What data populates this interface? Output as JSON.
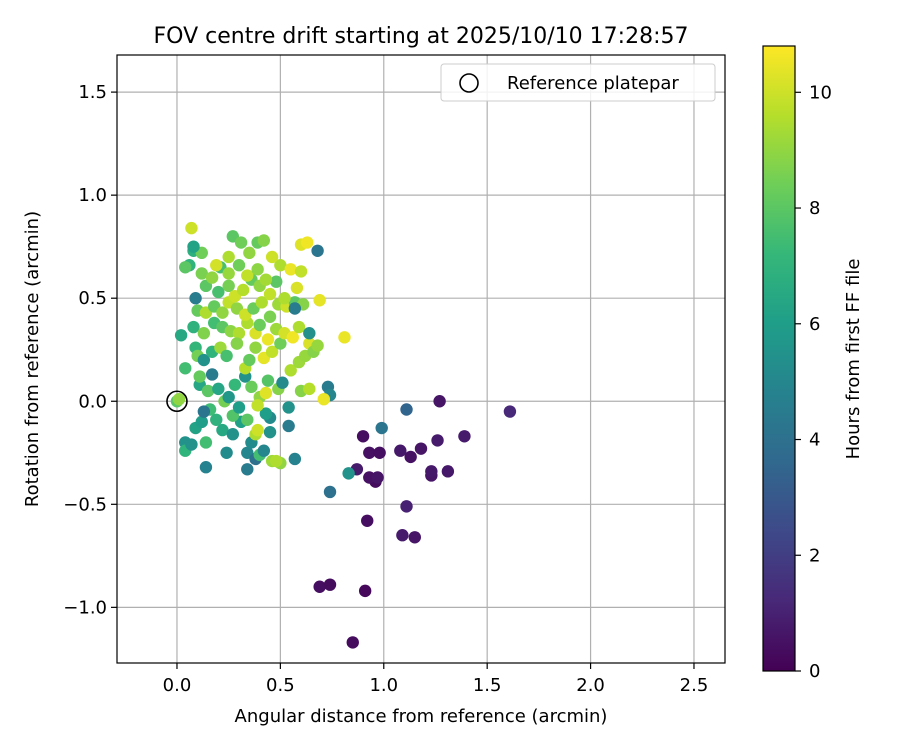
{
  "chart_data": {
    "type": "scatter",
    "title": "FOV centre drift starting at 2025/10/10 17:28:57",
    "xlabel": "Angular distance from reference (arcmin)",
    "ylabel": "Rotation from reference (arcmin)",
    "xlim": [
      -0.29,
      2.65
    ],
    "ylim": [
      -1.27,
      1.68
    ],
    "xticks": [
      0.0,
      0.5,
      1.0,
      1.5,
      2.0,
      2.5
    ],
    "xtick_labels": [
      "0.0",
      "0.5",
      "1.0",
      "1.5",
      "2.0",
      "2.5"
    ],
    "yticks": [
      -1.0,
      -0.5,
      0.0,
      0.5,
      1.0,
      1.5
    ],
    "ytick_labels": [
      "−1.0",
      "−0.5",
      "0.0",
      "0.5",
      "1.0",
      "1.5"
    ],
    "grid": true,
    "legend": {
      "position": "top-right",
      "entries": [
        "Reference platepar"
      ]
    },
    "reference_point": {
      "x": 0.0,
      "y": 0.0
    },
    "colorbar": {
      "label": "Hours from first FF file",
      "min": 0,
      "max": 10.8,
      "ticks": [
        0,
        2,
        4,
        6,
        8,
        10
      ],
      "tick_labels": [
        "0",
        "2",
        "4",
        "6",
        "8",
        "10"
      ],
      "colormap": [
        "#440154",
        "#482878",
        "#3e4989",
        "#31688e",
        "#26828e",
        "#1f9e89",
        "#35b779",
        "#6ece58",
        "#b5de2b",
        "#fde725"
      ]
    },
    "points": [
      [
        0.85,
        -1.17,
        0.3
      ],
      [
        0.91,
        -0.92,
        0.2
      ],
      [
        0.69,
        -0.9,
        0.4
      ],
      [
        0.74,
        -0.89,
        0.3
      ],
      [
        1.15,
        -0.66,
        0.6
      ],
      [
        1.09,
        -0.65,
        0.8
      ],
      [
        0.92,
        -0.58,
        0.4
      ],
      [
        1.11,
        -0.51,
        1.0
      ],
      [
        0.74,
        -0.44,
        4.0
      ],
      [
        0.96,
        -0.39,
        0.3
      ],
      [
        0.93,
        -0.37,
        0.5
      ],
      [
        0.97,
        -0.37,
        0.6
      ],
      [
        0.87,
        -0.33,
        0.8
      ],
      [
        1.23,
        -0.36,
        0.6
      ],
      [
        1.23,
        -0.34,
        0.7
      ],
      [
        1.31,
        -0.34,
        0.7
      ],
      [
        0.93,
        -0.25,
        0.5
      ],
      [
        0.98,
        -0.25,
        0.4
      ],
      [
        1.08,
        -0.24,
        0.7
      ],
      [
        1.13,
        -0.27,
        0.5
      ],
      [
        1.18,
        -0.23,
        0.6
      ],
      [
        1.26,
        -0.19,
        0.8
      ],
      [
        1.39,
        -0.17,
        0.8
      ],
      [
        0.9,
        -0.17,
        0.4
      ],
      [
        0.99,
        -0.13,
        4.2
      ],
      [
        1.11,
        -0.04,
        3.5
      ],
      [
        1.61,
        -0.05,
        1.2
      ],
      [
        1.27,
        0.0,
        0.6
      ],
      [
        0.83,
        -0.35,
        5.5
      ],
      [
        0.57,
        -0.28,
        4.8
      ],
      [
        0.5,
        -0.3,
        9.0
      ],
      [
        0.68,
        0.73,
        4.2
      ],
      [
        0.73,
        0.07,
        4.5
      ],
      [
        0.74,
        0.03,
        5.0
      ],
      [
        0.54,
        -0.03,
        5.5
      ],
      [
        0.54,
        -0.12,
        4.5
      ],
      [
        0.0,
        0.0,
        8.0
      ],
      [
        0.01,
        0.01,
        9.0
      ],
      [
        0.04,
        0.16,
        7.5
      ],
      [
        0.02,
        0.32,
        6.5
      ],
      [
        0.04,
        -0.2,
        5.5
      ],
      [
        0.04,
        -0.24,
        7.0
      ],
      [
        0.07,
        -0.21,
        5.5
      ],
      [
        0.14,
        -0.32,
        4.8
      ],
      [
        0.14,
        -0.2,
        7.5
      ],
      [
        0.24,
        -0.25,
        5.2
      ],
      [
        0.34,
        -0.33,
        4.5
      ],
      [
        0.34,
        -0.25,
        5.0
      ],
      [
        0.38,
        -0.28,
        4.0
      ],
      [
        0.4,
        -0.26,
        7.5
      ],
      [
        0.42,
        -0.24,
        5.0
      ],
      [
        0.46,
        -0.29,
        9.2
      ],
      [
        0.48,
        -0.29,
        9.5
      ],
      [
        0.09,
        -0.13,
        6.2
      ],
      [
        0.12,
        -0.1,
        6.0
      ],
      [
        0.16,
        -0.04,
        7.4
      ],
      [
        0.19,
        -0.09,
        6.9
      ],
      [
        0.22,
        -0.14,
        6.5
      ],
      [
        0.27,
        -0.16,
        5.5
      ],
      [
        0.31,
        -0.1,
        6.1
      ],
      [
        0.36,
        -0.2,
        5.2
      ],
      [
        0.38,
        -0.16,
        9.5
      ],
      [
        0.39,
        -0.14,
        10.0
      ],
      [
        0.45,
        -0.15,
        5.5
      ],
      [
        0.45,
        -0.08,
        5.2
      ],
      [
        0.34,
        -0.09,
        8.0
      ],
      [
        0.43,
        -0.06,
        6.0
      ],
      [
        0.27,
        -0.07,
        7.8
      ],
      [
        0.3,
        -0.03,
        6.0
      ],
      [
        0.23,
        0.0,
        8.5
      ],
      [
        0.25,
        0.02,
        5.7
      ],
      [
        0.4,
        0.02,
        9.0
      ],
      [
        0.39,
        -0.02,
        9.8
      ],
      [
        0.11,
        0.08,
        6.4
      ],
      [
        0.11,
        0.12,
        8.2
      ],
      [
        0.15,
        0.05,
        8.0
      ],
      [
        0.2,
        0.06,
        6.4
      ],
      [
        0.28,
        0.08,
        7.2
      ],
      [
        0.33,
        0.12,
        5.5
      ],
      [
        0.36,
        0.07,
        8.3
      ],
      [
        0.43,
        0.04,
        10.3
      ],
      [
        0.44,
        0.1,
        7.9
      ],
      [
        0.49,
        0.06,
        8.8
      ],
      [
        0.51,
        0.09,
        5.2
      ],
      [
        0.09,
        0.26,
        7.1
      ],
      [
        0.1,
        0.22,
        8.5
      ],
      [
        0.13,
        0.2,
        5.5
      ],
      [
        0.17,
        0.24,
        7.0
      ],
      [
        0.21,
        0.26,
        9.2
      ],
      [
        0.24,
        0.22,
        7.6
      ],
      [
        0.29,
        0.28,
        8.8
      ],
      [
        0.33,
        0.16,
        9.6
      ],
      [
        0.35,
        0.2,
        8.2
      ],
      [
        0.38,
        0.26,
        9.0
      ],
      [
        0.42,
        0.21,
        10.4
      ],
      [
        0.46,
        0.24,
        9.8
      ],
      [
        0.5,
        0.28,
        8.4
      ],
      [
        0.55,
        0.15,
        9.5
      ],
      [
        0.59,
        0.19,
        9.2
      ],
      [
        0.62,
        0.22,
        9.1
      ],
      [
        0.64,
        0.28,
        10.2
      ],
      [
        0.66,
        0.24,
        8.8
      ],
      [
        0.68,
        0.27,
        9.1
      ],
      [
        0.6,
        0.05,
        8.8
      ],
      [
        0.64,
        0.06,
        9.6
      ],
      [
        0.71,
        0.01,
        10.5
      ],
      [
        0.08,
        0.36,
        6.9
      ],
      [
        0.13,
        0.33,
        8.7
      ],
      [
        0.18,
        0.38,
        7.5
      ],
      [
        0.22,
        0.36,
        8.0
      ],
      [
        0.26,
        0.34,
        8.9
      ],
      [
        0.3,
        0.33,
        9.5
      ],
      [
        0.34,
        0.38,
        9.5
      ],
      [
        0.38,
        0.33,
        10.2
      ],
      [
        0.4,
        0.37,
        8.3
      ],
      [
        0.44,
        0.3,
        10.5
      ],
      [
        0.48,
        0.35,
        9.2
      ],
      [
        0.52,
        0.33,
        10.1
      ],
      [
        0.56,
        0.31,
        10.6
      ],
      [
        0.59,
        0.36,
        9.5
      ],
      [
        0.64,
        0.33,
        5.4
      ],
      [
        0.81,
        0.31,
        10.5
      ],
      [
        0.1,
        0.44,
        8.2
      ],
      [
        0.14,
        0.43,
        9.5
      ],
      [
        0.18,
        0.46,
        8.2
      ],
      [
        0.22,
        0.43,
        9.0
      ],
      [
        0.25,
        0.48,
        9.8
      ],
      [
        0.29,
        0.45,
        9.0
      ],
      [
        0.33,
        0.42,
        10.0
      ],
      [
        0.37,
        0.45,
        8.3
      ],
      [
        0.41,
        0.48,
        9.5
      ],
      [
        0.45,
        0.41,
        8.6
      ],
      [
        0.49,
        0.47,
        9.2
      ],
      [
        0.53,
        0.46,
        10.0
      ],
      [
        0.57,
        0.48,
        8.0
      ],
      [
        0.61,
        0.47,
        8.8
      ],
      [
        0.09,
        0.5,
        4.5
      ],
      [
        0.14,
        0.56,
        8.0
      ],
      [
        0.2,
        0.53,
        7.6
      ],
      [
        0.25,
        0.56,
        8.5
      ],
      [
        0.28,
        0.51,
        10.0
      ],
      [
        0.32,
        0.54,
        9.6
      ],
      [
        0.36,
        0.59,
        8.2
      ],
      [
        0.4,
        0.56,
        9.0
      ],
      [
        0.45,
        0.52,
        9.8
      ],
      [
        0.48,
        0.58,
        8.0
      ],
      [
        0.52,
        0.5,
        9.5
      ],
      [
        0.58,
        0.55,
        10.2
      ],
      [
        0.69,
        0.49,
        10.4
      ],
      [
        0.57,
        0.45,
        4.5
      ],
      [
        0.06,
        0.66,
        7.0
      ],
      [
        0.12,
        0.62,
        8.6
      ],
      [
        0.17,
        0.6,
        9.0
      ],
      [
        0.21,
        0.65,
        7.6
      ],
      [
        0.25,
        0.62,
        9.1
      ],
      [
        0.3,
        0.66,
        8.4
      ],
      [
        0.34,
        0.61,
        9.8
      ],
      [
        0.39,
        0.64,
        8.9
      ],
      [
        0.43,
        0.59,
        9.3
      ],
      [
        0.5,
        0.66,
        9.5
      ],
      [
        0.55,
        0.64,
        10.5
      ],
      [
        0.6,
        0.63,
        9.8
      ],
      [
        0.04,
        0.65,
        8.0
      ],
      [
        0.08,
        0.73,
        6.8
      ],
      [
        0.12,
        0.72,
        8.4
      ],
      [
        0.19,
        0.66,
        10.1
      ],
      [
        0.25,
        0.7,
        9.5
      ],
      [
        0.27,
        0.8,
        8.0
      ],
      [
        0.31,
        0.77,
        8.4
      ],
      [
        0.35,
        0.72,
        9.0
      ],
      [
        0.39,
        0.77,
        8.2
      ],
      [
        0.42,
        0.78,
        8.8
      ],
      [
        0.46,
        0.7,
        10.0
      ],
      [
        0.6,
        0.76,
        10.3
      ],
      [
        0.63,
        0.77,
        10.6
      ],
      [
        0.07,
        0.84,
        10.0
      ],
      [
        0.08,
        0.75,
        6.2
      ],
      [
        0.29,
        0.28,
        8.8
      ],
      [
        0.13,
        -0.05,
        4.2
      ],
      [
        0.17,
        0.13,
        4.5
      ]
    ]
  }
}
